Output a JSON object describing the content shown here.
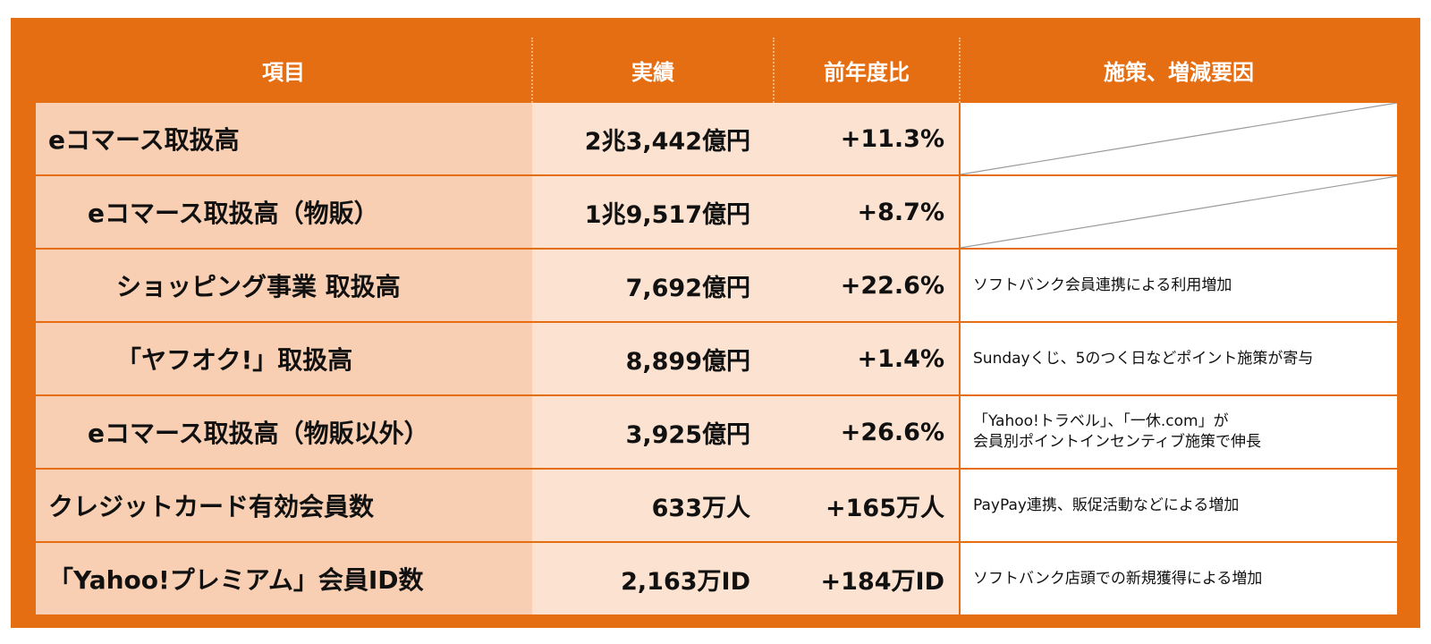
{
  "headers": {
    "item": "項目",
    "actual": "実績",
    "yoy": "前年度比",
    "notes": "施策、増減要因"
  },
  "rows": [
    {
      "item": "eコマース取扱高",
      "actual": "2兆3,442億円",
      "yoy": "+11.3%",
      "note": ""
    },
    {
      "item": "eコマース取扱高（物販）",
      "actual": "1兆9,517億円",
      "yoy": "+8.7%",
      "note": ""
    },
    {
      "item": "ショッピング事業 取扱高",
      "actual": "7,692億円",
      "yoy": "+22.6%",
      "note": "ソフトバンク会員連携による利用増加"
    },
    {
      "item": "「ヤフオク!」取扱高",
      "actual": "8,899億円",
      "yoy": "+1.4%",
      "note": "Sundayくじ、5のつく日などポイント施策が寄与"
    },
    {
      "item": "eコマース取扱高（物販以外）",
      "actual": "3,925億円",
      "yoy": "+26.6%",
      "note_line1": "「Yahoo!トラベル」、「一休.com」が",
      "note_line2": "会員別ポイントインセンティブ施策で伸長"
    },
    {
      "item": "クレジットカード有効会員数",
      "actual": "633万人",
      "yoy": "+165万人",
      "note": "PayPay連携、販促活動などによる増加"
    },
    {
      "item": "「Yahoo!プレミアム」会員ID数",
      "actual": "2,163万ID",
      "yoy": "+184万ID",
      "note": "ソフトバンク店頭での新規獲得による増加"
    }
  ],
  "colors": {
    "frame": "#E56E12",
    "item_bg": "#F8CFB2",
    "value_bg": "#FCE2D1",
    "note_bg": "#FFFFFF"
  }
}
